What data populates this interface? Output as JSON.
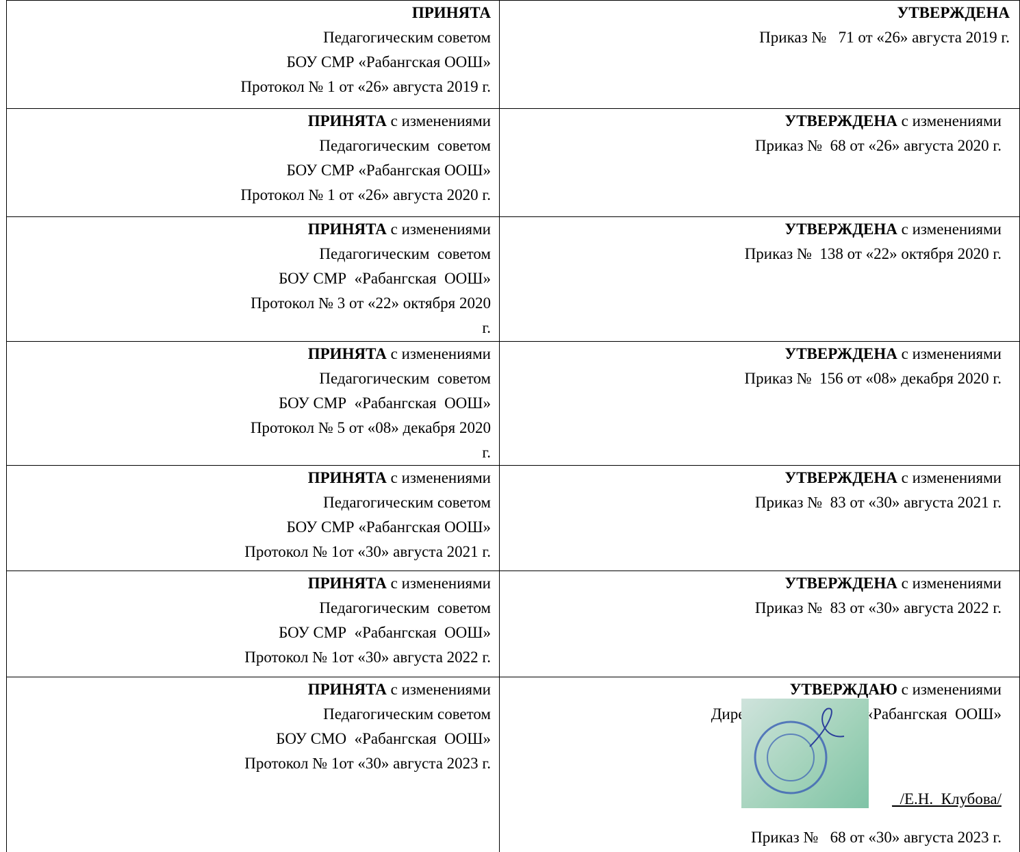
{
  "table": {
    "rows": [
      {
        "left": {
          "title": "ПРИНЯТА",
          "lines": [
            "Педагогическим советом",
            "БОУ СМР «Рабангская ООШ»",
            "Протокол № 1 от «26» августа 2019 г."
          ]
        },
        "right": {
          "title": "УТВЕРЖДЕНА",
          "lines": [
            "Приказ №   71 от «26» августа 2019 г."
          ]
        }
      },
      {
        "left": {
          "title": "ПРИНЯТА",
          "note": "с изменениями",
          "lines": [
            "Педагогическим  советом",
            "БОУ СМР «Рабангская ООШ»",
            "Протокол № 1 от «26» августа 2020 г."
          ]
        },
        "right": {
          "title": "УТВЕРЖДЕНА",
          "note": "с изменениями",
          "lines": [
            "Приказ №  68 от «26» августа 2020 г."
          ]
        }
      },
      {
        "left": {
          "title": "ПРИНЯТА",
          "note": "с изменениями",
          "lines": [
            "Педагогическим  советом",
            "БОУ СМР  «Рабангская  ООШ»",
            "Протокол № 3 от «22» октября 2020",
            "г."
          ]
        },
        "right": {
          "title": "УТВЕРЖДЕНА",
          "note": "с изменениями",
          "lines": [
            "Приказ №  138 от «22» октября 2020 г."
          ]
        }
      },
      {
        "left": {
          "title": "ПРИНЯТА",
          "note": "с изменениями",
          "lines": [
            "Педагогическим  советом",
            "БОУ СМР  «Рабангская  ООШ»",
            "Протокол № 5 от «08» декабря 2020",
            "г."
          ]
        },
        "right": {
          "title": "УТВЕРЖДЕНА",
          "note": "с изменениями",
          "lines": [
            "Приказ №  156 от «08» декабря 2020 г."
          ]
        }
      },
      {
        "left": {
          "title": "ПРИНЯТА",
          "note": "с изменениями",
          "lines": [
            "Педагогическим советом",
            "БОУ СМР «Рабангская ООШ»",
            "Протокол № 1от «30» августа 2021 г."
          ]
        },
        "right": {
          "title": "УТВЕРЖДЕНА",
          "note": "с изменениями",
          "lines": [
            "Приказ №  83 от «30» августа 2021 г."
          ]
        }
      },
      {
        "left": {
          "title": "ПРИНЯТА",
          "note": "с изменениями",
          "lines": [
            "Педагогическим  советом",
            "БОУ СМР  «Рабангская  ООШ»",
            "Протокол № 1от «30» августа 2022 г."
          ]
        },
        "right": {
          "title": "УТВЕРЖДЕНА",
          "note": "с изменениями",
          "lines": [
            "Приказ №  83 от «30» августа 2022 г."
          ]
        }
      },
      {
        "left": {
          "title": "ПРИНЯТА",
          "note": "с изменениями",
          "lines": [
            "Педагогическим советом",
            "БОУ СМО  «Рабангская  ООШ»",
            "Протокол № 1от «30» августа 2023 г."
          ]
        },
        "right": {
          "title": "УТВЕРЖДАЮ",
          "note": "с изменениями",
          "lines": [
            "Директор  БОУ  СМО  «Рабангская  ООШ»"
          ],
          "signature": {
            "blank": "_",
            "name": "_/Е.Н.  Клубова/"
          },
          "order": "Приказ №   68 от «30» августа 2023 г."
        }
      }
    ]
  }
}
